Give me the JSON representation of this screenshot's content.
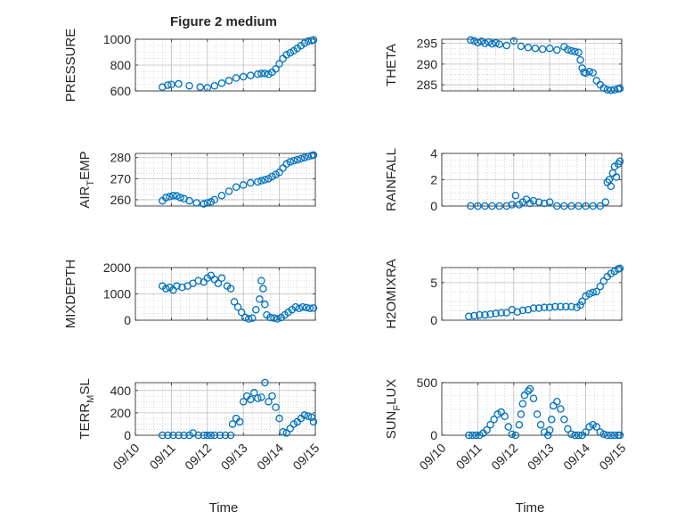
{
  "figure": {
    "title": "Figure 2 medium",
    "time_label": "Time",
    "marker_color": "#0072BD",
    "grid_color": "#bdbdbd"
  },
  "chart_data": [
    {
      "type": "scatter",
      "id": "pressure",
      "title": "",
      "xlabel": "",
      "ylabel": "PRESSURE",
      "xlim": [
        0,
        5
      ],
      "ylim": [
        600,
        1000
      ],
      "yticks": [
        600,
        800,
        1000
      ],
      "yticklabels": [
        "600",
        "800",
        "1000"
      ],
      "xticklabels": [
        "09/10",
        "09/11",
        "09/12",
        "09/13",
        "09/14",
        "09/15"
      ],
      "show_xticklabels": false,
      "grid": true,
      "x": [
        0.75,
        0.9,
        1.0,
        1.2,
        1.5,
        1.8,
        2.0,
        2.2,
        2.4,
        2.6,
        2.8,
        3.0,
        3.2,
        3.4,
        3.5,
        3.6,
        3.7,
        3.8,
        3.9,
        4.0,
        4.1,
        4.2,
        4.3,
        4.4,
        4.5,
        4.6,
        4.7,
        4.8,
        4.9,
        4.95
      ],
      "y": [
        630,
        645,
        650,
        655,
        640,
        630,
        625,
        640,
        660,
        680,
        700,
        710,
        720,
        730,
        735,
        735,
        730,
        745,
        770,
        810,
        850,
        880,
        895,
        910,
        930,
        950,
        970,
        985,
        990,
        995
      ]
    },
    {
      "type": "scatter",
      "id": "theta",
      "title": "",
      "xlabel": "",
      "ylabel": "THETA",
      "xlim": [
        0,
        5
      ],
      "ylim": [
        283.5,
        296
      ],
      "yticks": [
        285,
        290,
        295
      ],
      "yticklabels": [
        "285",
        "290",
        "295"
      ],
      "show_xticklabels": false,
      "grid": true,
      "x": [
        0.8,
        0.9,
        1.0,
        1.1,
        1.2,
        1.3,
        1.4,
        1.5,
        1.6,
        1.8,
        2.0,
        2.2,
        2.4,
        2.6,
        2.8,
        3.0,
        3.2,
        3.4,
        3.5,
        3.6,
        3.7,
        3.8,
        3.85,
        3.9,
        3.95,
        4.0,
        4.1,
        4.2,
        4.3,
        4.4,
        4.5,
        4.6,
        4.7,
        4.8,
        4.9,
        4.95
      ],
      "y": [
        295.8,
        295.6,
        295.2,
        295.5,
        295.0,
        295.3,
        294.9,
        295.1,
        294.8,
        294.5,
        295.6,
        294.3,
        294.0,
        293.8,
        293.6,
        293.8,
        293.4,
        294.2,
        293.5,
        293.2,
        293.0,
        292.8,
        291.0,
        289.0,
        288.0,
        287.8,
        288.2,
        287.9,
        286.0,
        285.0,
        284.2,
        283.8,
        283.7,
        283.8,
        284.0,
        284.1
      ]
    },
    {
      "type": "scatter",
      "id": "air_temp",
      "title": "",
      "xlabel": "",
      "ylabel": "AIR",
      "ylabel_sub": "T",
      "ylabel_rest": "EMP",
      "xlim": [
        0,
        5
      ],
      "ylim": [
        257,
        282
      ],
      "yticks": [
        260,
        270,
        280
      ],
      "yticklabels": [
        "260",
        "270",
        "280"
      ],
      "show_xticklabels": false,
      "grid": true,
      "x": [
        0.75,
        0.85,
        0.95,
        1.05,
        1.15,
        1.25,
        1.35,
        1.5,
        1.7,
        1.9,
        2.0,
        2.1,
        2.2,
        2.4,
        2.6,
        2.8,
        3.0,
        3.2,
        3.4,
        3.5,
        3.6,
        3.7,
        3.8,
        3.9,
        4.0,
        4.1,
        4.2,
        4.3,
        4.4,
        4.5,
        4.6,
        4.7,
        4.8,
        4.9,
        4.95
      ],
      "y": [
        259.5,
        261.0,
        261.5,
        262.0,
        261.8,
        261.0,
        260.5,
        259.5,
        258.5,
        258.0,
        258.5,
        259.0,
        260.0,
        262.0,
        264.0,
        266.0,
        267.0,
        268.0,
        268.5,
        269.0,
        269.5,
        270.0,
        271.0,
        272.0,
        273.0,
        275.0,
        277.0,
        278.0,
        278.5,
        279.0,
        279.5,
        280.0,
        280.5,
        281.0,
        281.2
      ]
    },
    {
      "type": "scatter",
      "id": "rainfall",
      "title": "",
      "xlabel": "",
      "ylabel": "RAINFALL",
      "xlim": [
        0,
        5
      ],
      "ylim": [
        0,
        4
      ],
      "yticks": [
        0,
        2,
        4
      ],
      "yticklabels": [
        "0",
        "2",
        "4"
      ],
      "show_xticklabels": false,
      "grid": true,
      "x": [
        0.8,
        1.0,
        1.2,
        1.4,
        1.6,
        1.8,
        1.95,
        2.05,
        2.15,
        2.25,
        2.35,
        2.45,
        2.55,
        2.7,
        2.85,
        3.0,
        3.2,
        3.4,
        3.6,
        3.8,
        4.0,
        4.2,
        4.4,
        4.55,
        4.6,
        4.65,
        4.7,
        4.75,
        4.8,
        4.85,
        4.9,
        4.95
      ],
      "y": [
        0,
        0,
        0,
        0,
        0,
        0,
        0.1,
        0.8,
        0.1,
        0.3,
        0.5,
        0.2,
        0.4,
        0.3,
        0.2,
        0.3,
        0,
        0,
        0,
        0,
        0,
        0,
        0,
        0.3,
        1.8,
        2.0,
        1.5,
        2.5,
        3.0,
        2.2,
        3.2,
        3.4
      ]
    },
    {
      "type": "scatter",
      "id": "mixdepth",
      "title": "",
      "xlabel": "",
      "ylabel": "MIXDEPTH",
      "xlim": [
        0,
        5
      ],
      "ylim": [
        0,
        2000
      ],
      "yticks": [
        0,
        1000,
        2000
      ],
      "yticklabels": [
        "0",
        "1000",
        "2000"
      ],
      "show_xticklabels": false,
      "grid": true,
      "x": [
        0.75,
        0.85,
        0.95,
        1.05,
        1.15,
        1.3,
        1.45,
        1.6,
        1.75,
        1.9,
        2.0,
        2.1,
        2.2,
        2.3,
        2.4,
        2.55,
        2.65,
        2.75,
        2.85,
        2.95,
        3.05,
        3.15,
        3.25,
        3.35,
        3.45,
        3.5,
        3.55,
        3.6,
        3.65,
        3.75,
        3.85,
        3.95,
        4.05,
        4.15,
        4.25,
        4.35,
        4.45,
        4.55,
        4.65,
        4.75,
        4.85,
        4.95
      ],
      "y": [
        1300,
        1200,
        1250,
        1150,
        1300,
        1250,
        1300,
        1400,
        1500,
        1450,
        1600,
        1700,
        1550,
        1400,
        1600,
        1300,
        1200,
        700,
        500,
        300,
        100,
        50,
        80,
        400,
        800,
        1500,
        1200,
        600,
        200,
        100,
        80,
        50,
        100,
        200,
        300,
        400,
        500,
        450,
        500,
        480,
        450,
        460
      ]
    },
    {
      "type": "scatter",
      "id": "h2omixra",
      "title": "",
      "xlabel": "",
      "ylabel": "H2OMIXRA",
      "xlim": [
        0,
        5
      ],
      "ylim": [
        0,
        7
      ],
      "yticks": [
        0,
        5
      ],
      "yticklabels": [
        "0",
        "5"
      ],
      "show_xticklabels": false,
      "grid": true,
      "x": [
        0.75,
        0.9,
        1.05,
        1.2,
        1.35,
        1.5,
        1.65,
        1.8,
        1.95,
        2.1,
        2.25,
        2.4,
        2.55,
        2.7,
        2.85,
        3.0,
        3.15,
        3.3,
        3.45,
        3.6,
        3.75,
        3.85,
        3.9,
        4.0,
        4.1,
        4.2,
        4.3,
        4.4,
        4.5,
        4.6,
        4.7,
        4.8,
        4.9,
        4.95
      ],
      "y": [
        0.5,
        0.6,
        0.7,
        0.7,
        0.8,
        0.9,
        1.0,
        1.0,
        1.4,
        1.1,
        1.3,
        1.4,
        1.6,
        1.6,
        1.7,
        1.7,
        1.8,
        1.8,
        1.8,
        1.8,
        1.7,
        2.0,
        2.5,
        3.2,
        3.5,
        3.7,
        3.8,
        4.5,
        5.2,
        5.8,
        6.2,
        6.5,
        6.8,
        6.9
      ]
    },
    {
      "type": "scatter",
      "id": "terr_msl",
      "title": "",
      "xlabel": "",
      "ylabel": "TERR",
      "ylabel_sub": "M",
      "ylabel_rest": "SL",
      "xlim": [
        0,
        5
      ],
      "ylim": [
        0,
        470
      ],
      "yticks": [
        0,
        200,
        400
      ],
      "yticklabels": [
        "0",
        "200",
        "400"
      ],
      "xticks": [
        0,
        1,
        2,
        3,
        4,
        5
      ],
      "xticklabels": [
        "09/10",
        "09/11",
        "09/12",
        "09/13",
        "09/14",
        "09/15"
      ],
      "show_xticklabels": true,
      "grid": true,
      "x": [
        0.75,
        0.9,
        1.05,
        1.2,
        1.35,
        1.5,
        1.6,
        1.75,
        1.9,
        2.0,
        2.1,
        2.2,
        2.35,
        2.5,
        2.65,
        2.7,
        2.8,
        2.9,
        3.0,
        3.1,
        3.2,
        3.3,
        3.4,
        3.5,
        3.6,
        3.7,
        3.8,
        3.9,
        4.0,
        4.1,
        4.2,
        4.3,
        4.4,
        4.5,
        4.6,
        4.7,
        4.8,
        4.9,
        4.95
      ],
      "y": [
        0,
        0,
        0,
        0,
        0,
        0,
        20,
        0,
        0,
        0,
        0,
        0,
        0,
        0,
        0,
        100,
        150,
        120,
        300,
        350,
        320,
        380,
        330,
        340,
        470,
        300,
        350,
        250,
        150,
        30,
        20,
        60,
        100,
        120,
        150,
        180,
        170,
        160,
        120
      ]
    },
    {
      "type": "scatter",
      "id": "sun_flux",
      "title": "",
      "xlabel": "",
      "ylabel": "SUN",
      "ylabel_sub": "F",
      "ylabel_rest": "LUX",
      "xlim": [
        0,
        5
      ],
      "ylim": [
        0,
        500
      ],
      "yticks": [
        0,
        500
      ],
      "yticklabels": [
        "0",
        "500"
      ],
      "xticks": [
        0,
        1,
        2,
        3,
        4,
        5
      ],
      "xticklabels": [
        "09/10",
        "09/11",
        "09/12",
        "09/13",
        "09/14",
        "09/15"
      ],
      "show_xticklabels": true,
      "grid": true,
      "x": [
        0.75,
        0.85,
        0.95,
        1.05,
        1.15,
        1.25,
        1.35,
        1.45,
        1.55,
        1.65,
        1.75,
        1.85,
        1.95,
        2.05,
        2.15,
        2.2,
        2.25,
        2.3,
        2.4,
        2.45,
        2.55,
        2.65,
        2.75,
        2.85,
        2.95,
        3.0,
        3.05,
        3.1,
        3.2,
        3.3,
        3.4,
        3.5,
        3.6,
        3.7,
        3.8,
        3.9,
        4.0,
        4.1,
        4.2,
        4.3,
        4.4,
        4.5,
        4.6,
        4.7,
        4.8,
        4.9,
        4.95
      ],
      "y": [
        0,
        0,
        0,
        0,
        20,
        50,
        100,
        150,
        200,
        220,
        180,
        80,
        10,
        0,
        100,
        200,
        300,
        380,
        420,
        440,
        350,
        200,
        100,
        30,
        0,
        50,
        150,
        280,
        320,
        250,
        150,
        60,
        10,
        0,
        0,
        0,
        30,
        80,
        100,
        80,
        30,
        10,
        0,
        0,
        0,
        0,
        0
      ]
    }
  ]
}
